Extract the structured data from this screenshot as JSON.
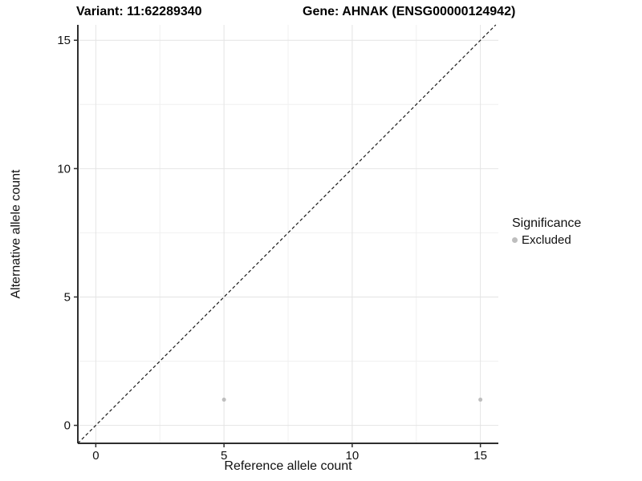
{
  "header": {
    "variant_title": "Variant: 11:62289340",
    "gene_title": "Gene: AHNAK (ENSG00000124942)"
  },
  "legend": {
    "title": "Significance",
    "items": [
      {
        "label": "Excluded",
        "color": "#bebebe"
      }
    ]
  },
  "chart_data": {
    "type": "scatter",
    "title": "Variant: 11:62289340  Gene: AHNAK (ENSG00000124942)",
    "xlabel": "Reference allele count",
    "ylabel": "Alternative allele count",
    "xlim": [
      -0.7,
      15.7
    ],
    "ylim": [
      -0.7,
      15.6
    ],
    "x_ticks": [
      0,
      5,
      10,
      15
    ],
    "y_ticks": [
      0,
      5,
      10,
      15
    ],
    "x_minor_ticks": [
      2.5,
      7.5,
      12.5
    ],
    "y_minor_ticks": [
      2.5,
      7.5,
      12.5
    ],
    "grid": true,
    "legend_position": "right",
    "series": [
      {
        "name": "Excluded",
        "color": "#bebebe",
        "points": [
          {
            "x": 5,
            "y": 1
          },
          {
            "x": 15,
            "y": 1
          }
        ]
      }
    ],
    "identity_line": {
      "type": "y=x",
      "style": "dashed",
      "color": "#1a1a1a"
    },
    "colors": {
      "grid_major": "#e4e4e4",
      "grid_minor": "#f0f0f0",
      "axis_line": "#2e2e2e",
      "tick_label": "#111111",
      "point": "#bebebe"
    }
  }
}
